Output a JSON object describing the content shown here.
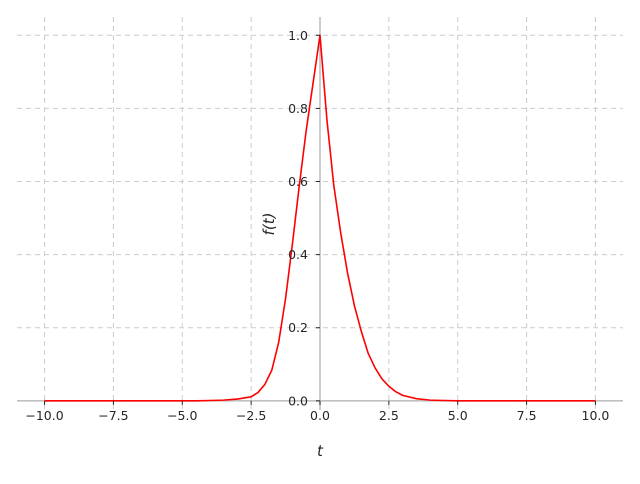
{
  "chart_data": {
    "type": "line",
    "title": "",
    "xlabel": "t",
    "ylabel": "f(t)",
    "xlim": [
      -11.0,
      11.0
    ],
    "ylim": [
      -0.025,
      1.05
    ],
    "xticks": [
      -10.0,
      -7.5,
      -5.0,
      -2.5,
      0.0,
      2.5,
      5.0,
      7.5,
      10.0
    ],
    "xtick_labels": [
      "−10.0",
      "−7.5",
      "−5.0",
      "−2.5",
      "0.0",
      "2.5",
      "5.0",
      "7.5",
      "10.0"
    ],
    "yticks": [
      0.0,
      0.2,
      0.4,
      0.6,
      0.8,
      1.0
    ],
    "ytick_labels": [
      "0.0",
      "0.2",
      "0.4",
      "0.6",
      "0.8",
      "1.0"
    ],
    "grid": true,
    "spines": "centered at zero",
    "series": [
      {
        "color": "#ff0000",
        "x": [
          -10.0,
          -9.5,
          -9.0,
          -8.5,
          -8.0,
          -7.5,
          -7.0,
          -6.5,
          -6.0,
          -5.5,
          -5.0,
          -4.5,
          -4.0,
          -3.5,
          -3.0,
          -2.75,
          -2.5,
          -2.25,
          -2.0,
          -1.75,
          -1.5,
          -1.25,
          -1.0,
          -0.75,
          -0.5,
          -0.25,
          0.0,
          0.25,
          0.5,
          0.75,
          1.0,
          1.25,
          1.5,
          1.75,
          2.0,
          2.25,
          2.5,
          2.75,
          3.0,
          3.5,
          4.0,
          4.5,
          5.0,
          5.5,
          6.0,
          6.5,
          7.0,
          7.5,
          8.0,
          8.5,
          9.0,
          9.5,
          10.0
        ],
        "y": [
          0.0,
          0.0,
          0.0,
          0.0,
          0.0,
          0.0,
          0.0,
          0.0,
          0.0,
          0.0,
          0.0,
          0.0,
          0.001,
          0.002,
          0.005,
          0.008,
          0.011,
          0.023,
          0.045,
          0.084,
          0.16,
          0.28,
          0.43,
          0.59,
          0.74,
          0.87,
          1.0,
          0.77,
          0.59,
          0.46,
          0.35,
          0.26,
          0.19,
          0.13,
          0.09,
          0.06,
          0.04,
          0.025,
          0.015,
          0.006,
          0.002,
          0.001,
          0.0,
          0.0,
          0.0,
          0.0,
          0.0,
          0.0,
          0.0,
          0.0,
          0.0,
          0.0,
          0.0
        ]
      }
    ]
  }
}
